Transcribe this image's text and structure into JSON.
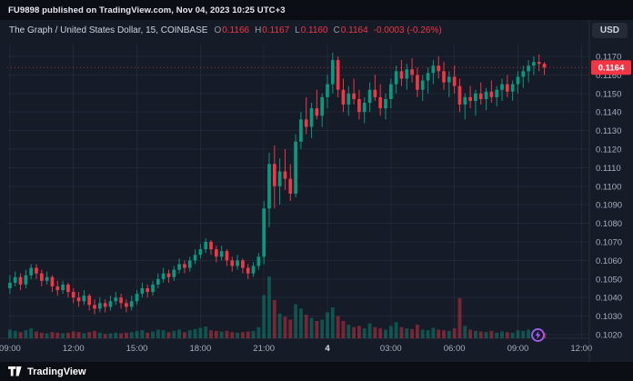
{
  "snapshot_bar": {
    "text": "FU9898 published on TradingView.com, Nov 04, 2023 10:25 UTC+3"
  },
  "header": {
    "symbol_line": "The Graph / United States Dollar, 15, COINBASE",
    "ohlc": {
      "o_label": "O",
      "o_value": "0.1166",
      "h_label": "H",
      "h_value": "0.1167",
      "l_label": "L",
      "l_value": "0.1160",
      "c_label": "C",
      "c_value": "0.1164",
      "change": "-0.0003 (-0.26%)"
    }
  },
  "currency_button": {
    "label": "USD"
  },
  "footer": {
    "brand": "TradingView"
  },
  "colors": {
    "background": "#151b27",
    "bar_background": "#0b0e14",
    "up": "#089981",
    "down": "#f23645",
    "up_volume": "rgba(8,153,129,0.45)",
    "down_volume": "rgba(242,54,69,0.45)",
    "grid": "rgba(140,150,175,0.10)",
    "axis_border": "#2a2e39",
    "axis_text": "#a8aebc",
    "axis_text_emphasis": "#dfe3ec",
    "price_label_bg": "#f23645",
    "price_label_text": "#ffffff",
    "badge_purple": "#9b5de5"
  },
  "chart_data": {
    "type": "candlestick+volume",
    "title": "The Graph / United States Dollar",
    "interval": "15",
    "exchange": "COINBASE",
    "start_time": "09:00",
    "interval_minutes": 15,
    "last_price": 0.1164,
    "last_price_label": "0.1164",
    "y_ticks": [
      0.102,
      0.103,
      0.104,
      0.105,
      0.106,
      0.107,
      0.108,
      0.109,
      0.11,
      0.111,
      0.112,
      0.113,
      0.114,
      0.115,
      0.116,
      0.117
    ],
    "x_ticks": [
      {
        "label": "09:00",
        "index": 0,
        "emphasis": false
      },
      {
        "label": "12:00",
        "index": 12,
        "emphasis": false
      },
      {
        "label": "15:00",
        "index": 24,
        "emphasis": false
      },
      {
        "label": "18:00",
        "index": 36,
        "emphasis": false
      },
      {
        "label": "21:00",
        "index": 48,
        "emphasis": false
      },
      {
        "label": "4",
        "index": 60,
        "emphasis": true
      },
      {
        "label": "03:00",
        "index": 72,
        "emphasis": false
      },
      {
        "label": "06:00",
        "index": 84,
        "emphasis": false
      },
      {
        "label": "09:00",
        "index": 96,
        "emphasis": false
      },
      {
        "label": "12:00",
        "index": 108,
        "emphasis": false
      }
    ],
    "candles_format": [
      "open",
      "high",
      "low",
      "close",
      "volume_relative"
    ],
    "candles": [
      [
        0.1045,
        0.1052,
        0.1042,
        0.1048,
        14
      ],
      [
        0.1048,
        0.1054,
        0.1046,
        0.1051,
        12
      ],
      [
        0.1051,
        0.1053,
        0.1044,
        0.1047,
        10
      ],
      [
        0.1047,
        0.1055,
        0.1045,
        0.1052,
        13
      ],
      [
        0.1052,
        0.1058,
        0.105,
        0.1056,
        16
      ],
      [
        0.1056,
        0.1058,
        0.105,
        0.1053,
        11
      ],
      [
        0.1053,
        0.1055,
        0.1046,
        0.1049,
        9
      ],
      [
        0.1049,
        0.1054,
        0.1047,
        0.1051,
        8
      ],
      [
        0.1051,
        0.1052,
        0.1043,
        0.1046,
        10
      ],
      [
        0.1046,
        0.1049,
        0.1041,
        0.1044,
        9
      ],
      [
        0.1044,
        0.1049,
        0.1042,
        0.1047,
        8
      ],
      [
        0.1047,
        0.1048,
        0.104,
        0.1043,
        9
      ],
      [
        0.1043,
        0.1045,
        0.1037,
        0.104,
        11
      ],
      [
        0.104,
        0.1043,
        0.1035,
        0.1038,
        10
      ],
      [
        0.1038,
        0.1044,
        0.1036,
        0.1041,
        8
      ],
      [
        0.1041,
        0.1042,
        0.1033,
        0.1036,
        10
      ],
      [
        0.1036,
        0.1039,
        0.1031,
        0.1034,
        12
      ],
      [
        0.1034,
        0.104,
        0.1032,
        0.1037,
        9
      ],
      [
        0.1037,
        0.1039,
        0.1032,
        0.1035,
        7
      ],
      [
        0.1035,
        0.1041,
        0.1033,
        0.1038,
        8
      ],
      [
        0.1038,
        0.1043,
        0.1036,
        0.104,
        9
      ],
      [
        0.104,
        0.1042,
        0.1034,
        0.1037,
        8
      ],
      [
        0.1037,
        0.1039,
        0.1032,
        0.1035,
        9
      ],
      [
        0.1035,
        0.1041,
        0.1033,
        0.1038,
        10
      ],
      [
        0.1038,
        0.1044,
        0.1036,
        0.1042,
        12
      ],
      [
        0.1042,
        0.1048,
        0.104,
        0.1045,
        13
      ],
      [
        0.1045,
        0.1047,
        0.104,
        0.1043,
        9
      ],
      [
        0.1043,
        0.1049,
        0.1041,
        0.1047,
        11
      ],
      [
        0.1047,
        0.1053,
        0.1045,
        0.105,
        14
      ],
      [
        0.105,
        0.1056,
        0.1048,
        0.1053,
        13
      ],
      [
        0.1053,
        0.1055,
        0.1048,
        0.1051,
        10
      ],
      [
        0.1051,
        0.1057,
        0.1049,
        0.1055,
        12
      ],
      [
        0.1055,
        0.1061,
        0.1053,
        0.1058,
        14
      ],
      [
        0.1058,
        0.106,
        0.1053,
        0.1056,
        10
      ],
      [
        0.1056,
        0.1062,
        0.1054,
        0.106,
        13
      ],
      [
        0.106,
        0.1066,
        0.1058,
        0.1063,
        15
      ],
      [
        0.1063,
        0.1069,
        0.1061,
        0.1066,
        17
      ],
      [
        0.1066,
        0.1072,
        0.1064,
        0.107,
        19
      ],
      [
        0.107,
        0.1071,
        0.1063,
        0.1066,
        13
      ],
      [
        0.1066,
        0.1068,
        0.1059,
        0.1062,
        12
      ],
      [
        0.1062,
        0.1068,
        0.106,
        0.1065,
        11
      ],
      [
        0.1065,
        0.1066,
        0.1057,
        0.106,
        12
      ],
      [
        0.106,
        0.1062,
        0.1054,
        0.1057,
        10
      ],
      [
        0.1057,
        0.1063,
        0.1055,
        0.106,
        9
      ],
      [
        0.106,
        0.1061,
        0.1053,
        0.1056,
        10
      ],
      [
        0.1056,
        0.1058,
        0.105,
        0.1053,
        11
      ],
      [
        0.1053,
        0.1059,
        0.1051,
        0.1057,
        12
      ],
      [
        0.1057,
        0.1064,
        0.1055,
        0.1062,
        18
      ],
      [
        0.1062,
        0.1092,
        0.1058,
        0.1088,
        70
      ],
      [
        0.1088,
        0.1118,
        0.1078,
        0.1112,
        100
      ],
      [
        0.1112,
        0.1122,
        0.1088,
        0.11,
        62
      ],
      [
        0.11,
        0.1115,
        0.109,
        0.1108,
        40
      ],
      [
        0.1108,
        0.112,
        0.1098,
        0.1104,
        35
      ],
      [
        0.1104,
        0.1112,
        0.1092,
        0.1096,
        30
      ],
      [
        0.1096,
        0.1128,
        0.1094,
        0.1124,
        55
      ],
      [
        0.1124,
        0.114,
        0.112,
        0.1136,
        48
      ],
      [
        0.1136,
        0.1148,
        0.1128,
        0.1132,
        38
      ],
      [
        0.1132,
        0.1145,
        0.1126,
        0.1142,
        33
      ],
      [
        0.1142,
        0.1152,
        0.1136,
        0.1138,
        28
      ],
      [
        0.1138,
        0.115,
        0.1132,
        0.1148,
        30
      ],
      [
        0.1148,
        0.116,
        0.1142,
        0.1155,
        42
      ],
      [
        0.1155,
        0.1172,
        0.115,
        0.1168,
        50
      ],
      [
        0.1168,
        0.117,
        0.1148,
        0.1152,
        36
      ],
      [
        0.1152,
        0.1158,
        0.114,
        0.1144,
        28
      ],
      [
        0.1144,
        0.1154,
        0.1138,
        0.115,
        22
      ],
      [
        0.115,
        0.1158,
        0.1144,
        0.1147,
        18
      ],
      [
        0.1147,
        0.1152,
        0.1136,
        0.114,
        20
      ],
      [
        0.114,
        0.1148,
        0.1134,
        0.1145,
        16
      ],
      [
        0.1145,
        0.1156,
        0.114,
        0.1152,
        24
      ],
      [
        0.1152,
        0.116,
        0.1146,
        0.1148,
        18
      ],
      [
        0.1148,
        0.1155,
        0.1138,
        0.1142,
        16
      ],
      [
        0.1142,
        0.115,
        0.1136,
        0.1147,
        14
      ],
      [
        0.1147,
        0.1158,
        0.1142,
        0.1155,
        20
      ],
      [
        0.1155,
        0.1165,
        0.115,
        0.1162,
        26
      ],
      [
        0.1162,
        0.1168,
        0.1154,
        0.1158,
        18
      ],
      [
        0.1158,
        0.1166,
        0.1152,
        0.1163,
        16
      ],
      [
        0.1163,
        0.1169,
        0.1156,
        0.116,
        15
      ],
      [
        0.116,
        0.1164,
        0.1148,
        0.1152,
        22
      ],
      [
        0.1152,
        0.116,
        0.1146,
        0.1157,
        14
      ],
      [
        0.1157,
        0.1164,
        0.115,
        0.1161,
        13
      ],
      [
        0.1161,
        0.1168,
        0.1155,
        0.1165,
        17
      ],
      [
        0.1165,
        0.117,
        0.1158,
        0.1162,
        14
      ],
      [
        0.1162,
        0.1167,
        0.1152,
        0.1156,
        13
      ],
      [
        0.1156,
        0.1162,
        0.1148,
        0.1159,
        12
      ],
      [
        0.1159,
        0.1165,
        0.115,
        0.1154,
        16
      ],
      [
        0.1154,
        0.1158,
        0.114,
        0.1144,
        65
      ],
      [
        0.1144,
        0.115,
        0.1136,
        0.1148,
        20
      ],
      [
        0.1148,
        0.1154,
        0.1142,
        0.1146,
        14
      ],
      [
        0.1146,
        0.1152,
        0.1138,
        0.115,
        12
      ],
      [
        0.115,
        0.1156,
        0.1144,
        0.1147,
        11
      ],
      [
        0.1147,
        0.1153,
        0.1141,
        0.1151,
        10
      ],
      [
        0.1151,
        0.1157,
        0.1145,
        0.1148,
        12
      ],
      [
        0.1148,
        0.1154,
        0.1143,
        0.1152,
        9
      ],
      [
        0.1152,
        0.1158,
        0.1146,
        0.1155,
        11
      ],
      [
        0.1155,
        0.116,
        0.1148,
        0.1151,
        10
      ],
      [
        0.1151,
        0.1157,
        0.1146,
        0.1155,
        9
      ],
      [
        0.1155,
        0.1162,
        0.115,
        0.1159,
        13
      ],
      [
        0.1159,
        0.1165,
        0.1153,
        0.1162,
        12
      ],
      [
        0.1162,
        0.1168,
        0.1156,
        0.1165,
        14
      ],
      [
        0.1165,
        0.117,
        0.116,
        0.1167,
        12
      ],
      [
        0.1167,
        0.1171,
        0.1162,
        0.1166,
        10
      ],
      [
        0.1166,
        0.1167,
        0.116,
        0.1164,
        9
      ]
    ]
  }
}
